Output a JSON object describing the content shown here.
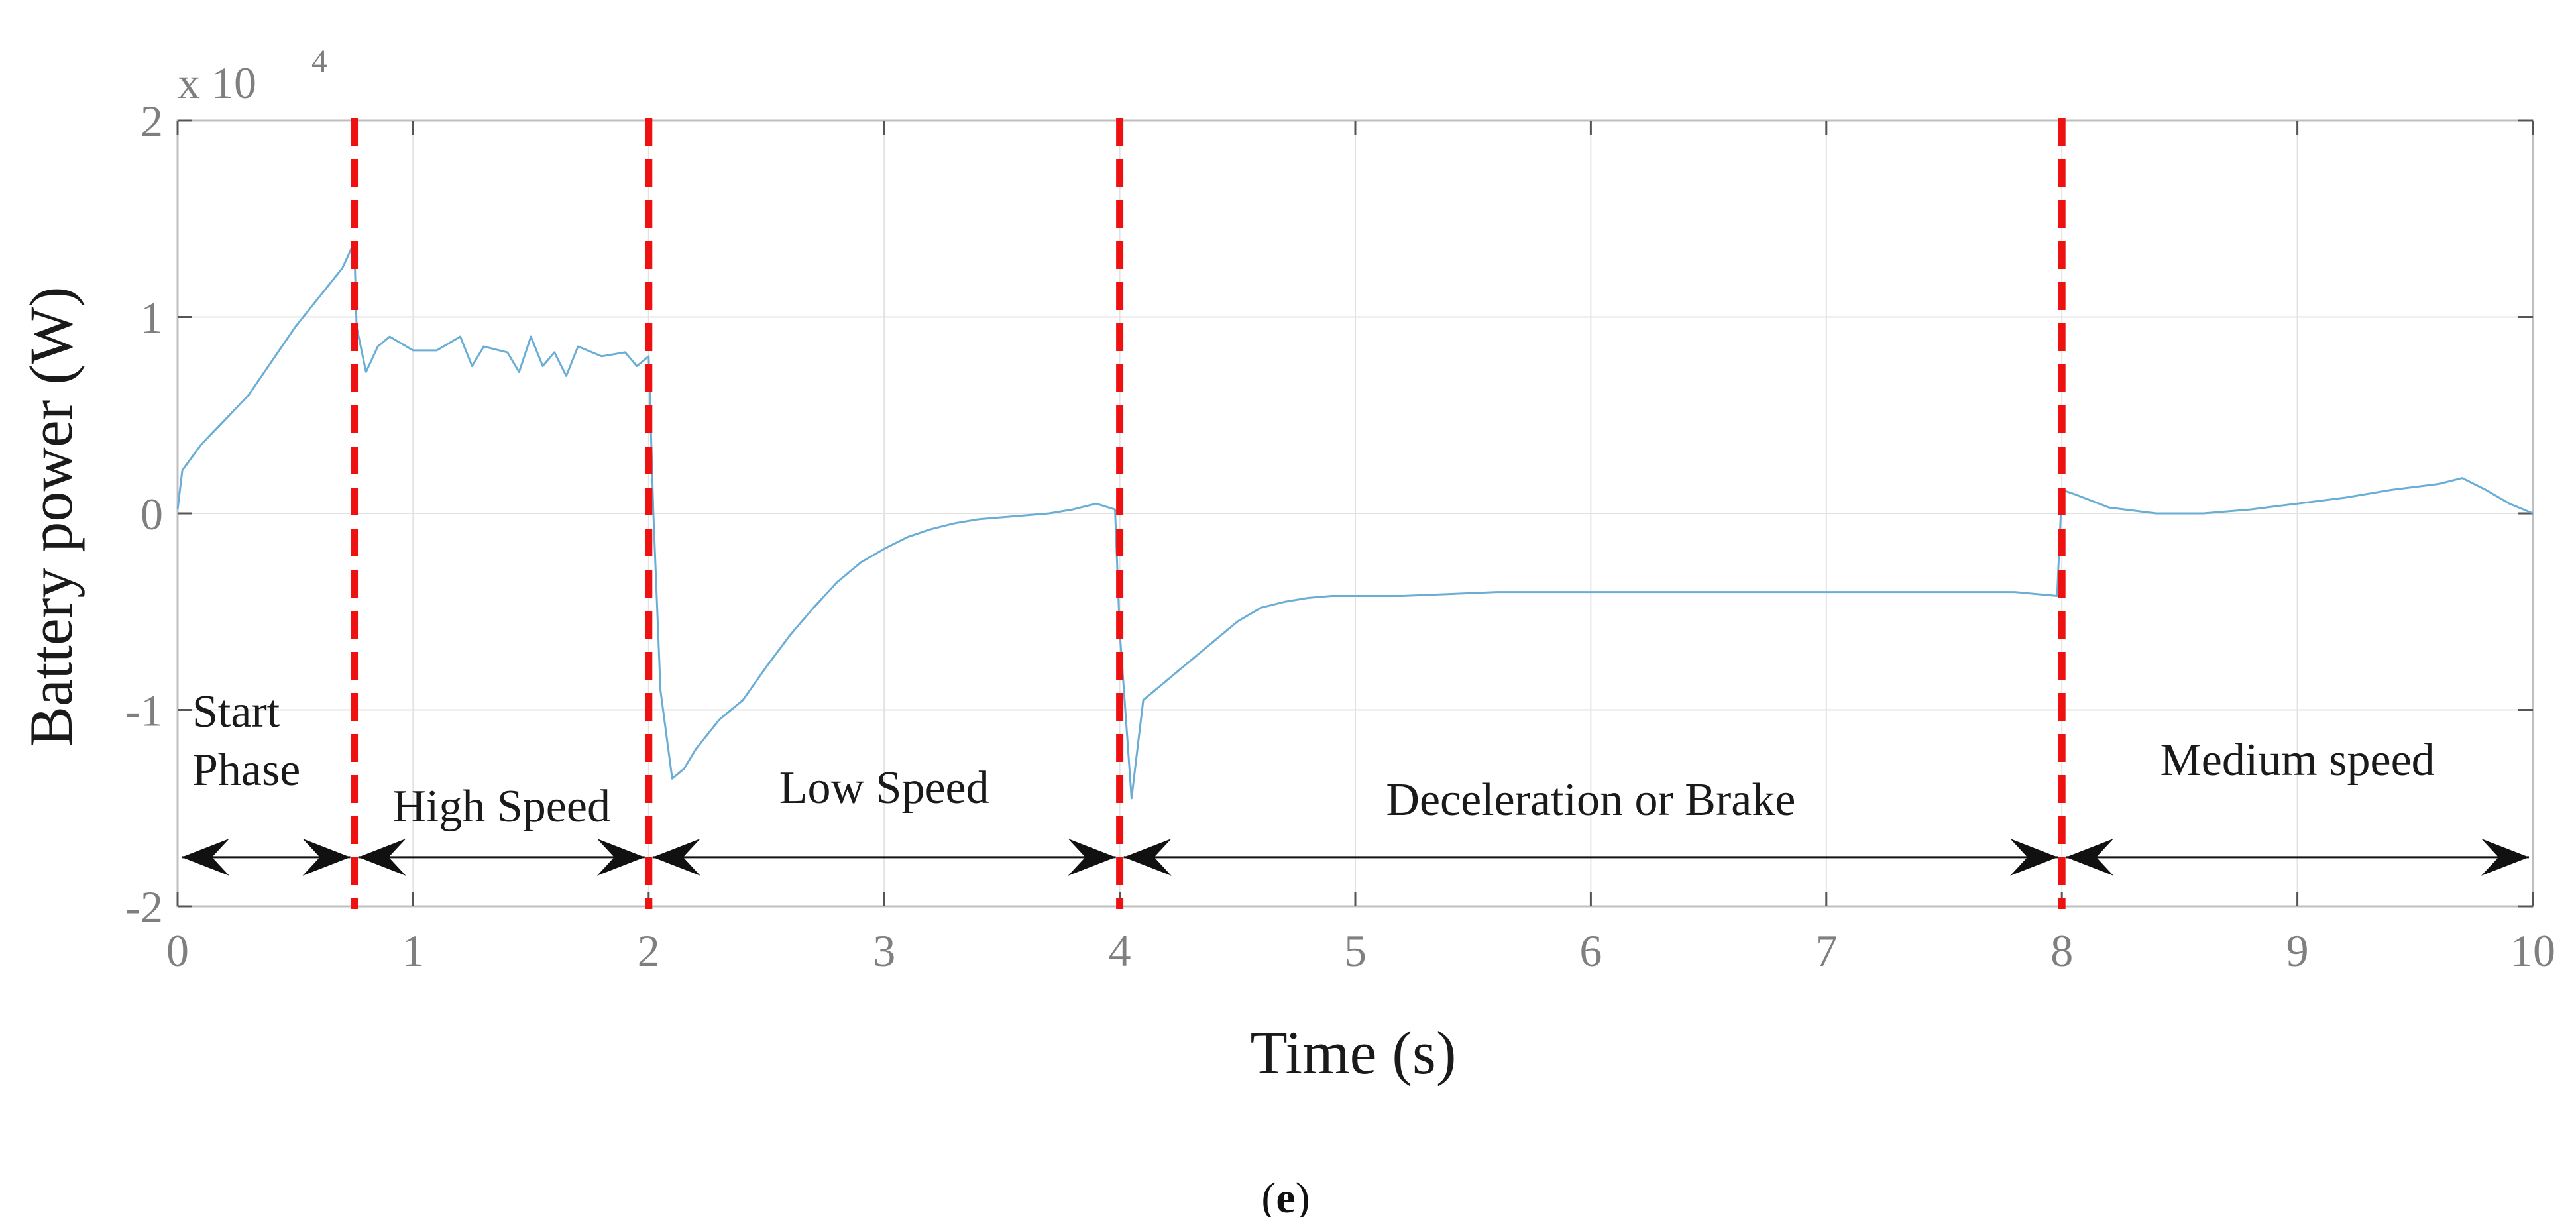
{
  "chart_data": {
    "type": "line",
    "title": "",
    "xlabel": "Time (s)",
    "ylabel": "Battery power (W)",
    "y_multiplier_label": "x 10",
    "y_multiplier_exponent": "4",
    "caption_open": "(",
    "caption_letter": "e",
    "caption_close": ")",
    "xlim": [
      0,
      10
    ],
    "ylim": [
      -2,
      2
    ],
    "x_ticks": [
      0,
      1,
      2,
      3,
      4,
      5,
      6,
      7,
      8,
      9,
      10
    ],
    "x_tick_labels": [
      "0",
      "1",
      "2",
      "3",
      "4",
      "5",
      "6",
      "7",
      "8",
      "9",
      "10"
    ],
    "y_ticks": [
      -2,
      -1,
      0,
      1,
      2
    ],
    "y_tick_labels": [
      "-2",
      "-1",
      "0",
      "1",
      "2"
    ],
    "grid": true,
    "line_color": "#6aaed6",
    "divider_color": "#ee1111",
    "arrow_color": "#111111",
    "series": [
      {
        "name": "Battery power",
        "x": [
          0,
          0.02,
          0.1,
          0.3,
          0.5,
          0.7,
          0.75,
          0.76,
          0.8,
          0.85,
          0.9,
          1.0,
          1.1,
          1.2,
          1.25,
          1.3,
          1.4,
          1.45,
          1.5,
          1.55,
          1.6,
          1.65,
          1.7,
          1.8,
          1.9,
          1.95,
          2.0,
          2.02,
          2.05,
          2.1,
          2.15,
          2.2,
          2.3,
          2.4,
          2.5,
          2.6,
          2.7,
          2.8,
          2.9,
          3.0,
          3.1,
          3.2,
          3.3,
          3.4,
          3.5,
          3.6,
          3.7,
          3.8,
          3.9,
          3.98,
          4.0,
          4.05,
          4.1,
          4.2,
          4.3,
          4.4,
          4.5,
          4.6,
          4.7,
          4.8,
          4.9,
          5.0,
          5.2,
          5.4,
          5.6,
          5.8,
          6.0,
          6.2,
          6.4,
          6.6,
          6.8,
          7.0,
          7.2,
          7.4,
          7.6,
          7.8,
          7.98,
          8.0,
          8.05,
          8.2,
          8.4,
          8.6,
          8.8,
          9.0,
          9.2,
          9.4,
          9.6,
          9.7,
          9.8,
          9.9,
          10.0
        ],
        "y": [
          0.02,
          0.22,
          0.35,
          0.6,
          0.95,
          1.25,
          1.38,
          0.95,
          0.72,
          0.85,
          0.9,
          0.83,
          0.83,
          0.9,
          0.75,
          0.85,
          0.82,
          0.72,
          0.9,
          0.75,
          0.82,
          0.7,
          0.85,
          0.8,
          0.82,
          0.75,
          0.8,
          0.0,
          -0.9,
          -1.35,
          -1.3,
          -1.2,
          -1.05,
          -0.95,
          -0.78,
          -0.62,
          -0.48,
          -0.35,
          -0.25,
          -0.18,
          -0.12,
          -0.08,
          -0.05,
          -0.03,
          -0.02,
          -0.01,
          0.0,
          0.02,
          0.05,
          0.02,
          -0.6,
          -1.45,
          -0.95,
          -0.85,
          -0.75,
          -0.65,
          -0.55,
          -0.48,
          -0.45,
          -0.43,
          -0.42,
          -0.42,
          -0.42,
          -0.41,
          -0.4,
          -0.4,
          -0.4,
          -0.4,
          -0.4,
          -0.4,
          -0.4,
          -0.4,
          -0.4,
          -0.4,
          -0.4,
          -0.4,
          -0.42,
          0.12,
          0.1,
          0.03,
          0.0,
          0.0,
          0.02,
          0.05,
          0.08,
          0.12,
          0.15,
          0.18,
          0.12,
          0.05,
          0.0
        ]
      }
    ],
    "phase_boundaries": [
      0.75,
      2.0,
      4.0,
      8.0
    ],
    "phases": [
      {
        "label_line1": "Start",
        "label_line2": "Phase",
        "start": 0,
        "end": 0.75
      },
      {
        "label_line1": "High Speed",
        "label_line2": "",
        "start": 0.75,
        "end": 2.0
      },
      {
        "label_line1": "Low Speed",
        "label_line2": "",
        "start": 2.0,
        "end": 4.0
      },
      {
        "label_line1": "Deceleration or Brake",
        "label_line2": "",
        "start": 4.0,
        "end": 8.0
      },
      {
        "label_line1": "Medium speed",
        "label_line2": "",
        "start": 8.0,
        "end": 10.0
      }
    ],
    "arrow_level": -1.75
  }
}
